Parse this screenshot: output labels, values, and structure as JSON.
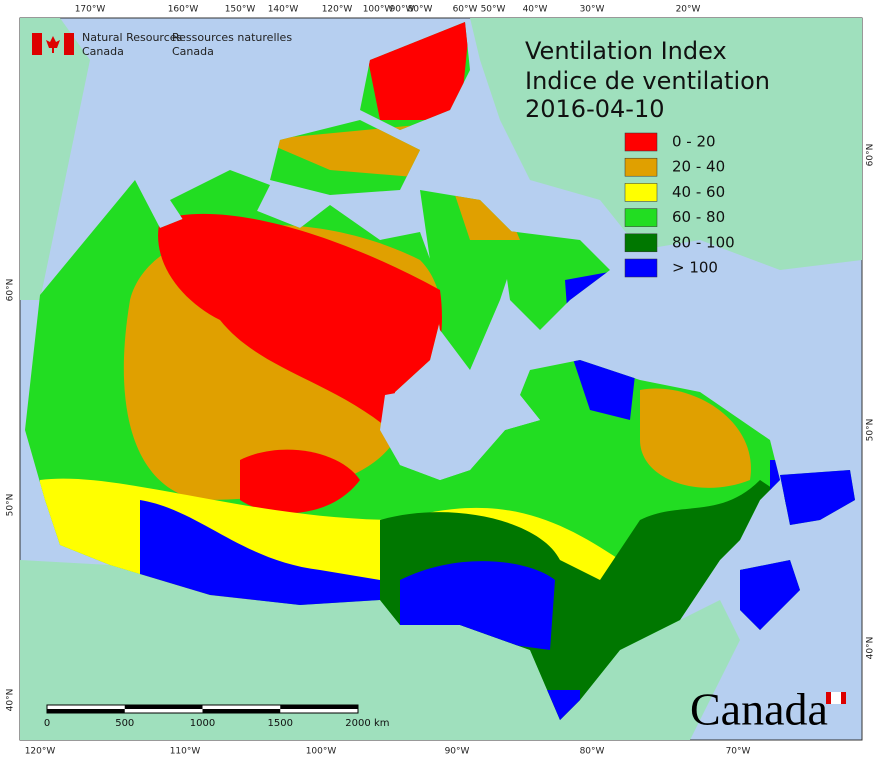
{
  "header": {
    "agency_en": [
      "Natural Resources",
      "Canada"
    ],
    "agency_fr": [
      "Ressources naturelles",
      "Canada"
    ]
  },
  "title": [
    "Ventilation Index",
    "Indice de ventilation",
    "2016-04-10"
  ],
  "legend": [
    {
      "label": "0 - 20",
      "color": "#ff0000"
    },
    {
      "label": "20 - 40",
      "color": "#e0a000"
    },
    {
      "label": "40 - 60",
      "color": "#ffff00"
    },
    {
      "label": "60 - 80",
      "color": "#22dd22"
    },
    {
      "label": "80 - 100",
      "color": "#007700"
    },
    {
      "label": "> 100",
      "color": "#0000ff"
    }
  ],
  "graticule": {
    "top": [
      "170°W",
      "160°W",
      "150°W",
      "140°W",
      "120°W",
      "100°W",
      "90°W",
      "80°W",
      "60°W",
      "50°W",
      "40°W",
      "30°W",
      "20°W"
    ],
    "bottom": [
      "120°W",
      "110°W",
      "100°W",
      "90°W",
      "80°W",
      "70°W"
    ],
    "left": [
      "60°N",
      "50°N",
      "40°N"
    ],
    "right": [
      "60°N",
      "50°N",
      "40°N"
    ]
  },
  "scale_bar": {
    "ticks": [
      0,
      500,
      1000,
      1500,
      2000
    ],
    "unit": "km"
  },
  "wordmark": "Canada"
}
